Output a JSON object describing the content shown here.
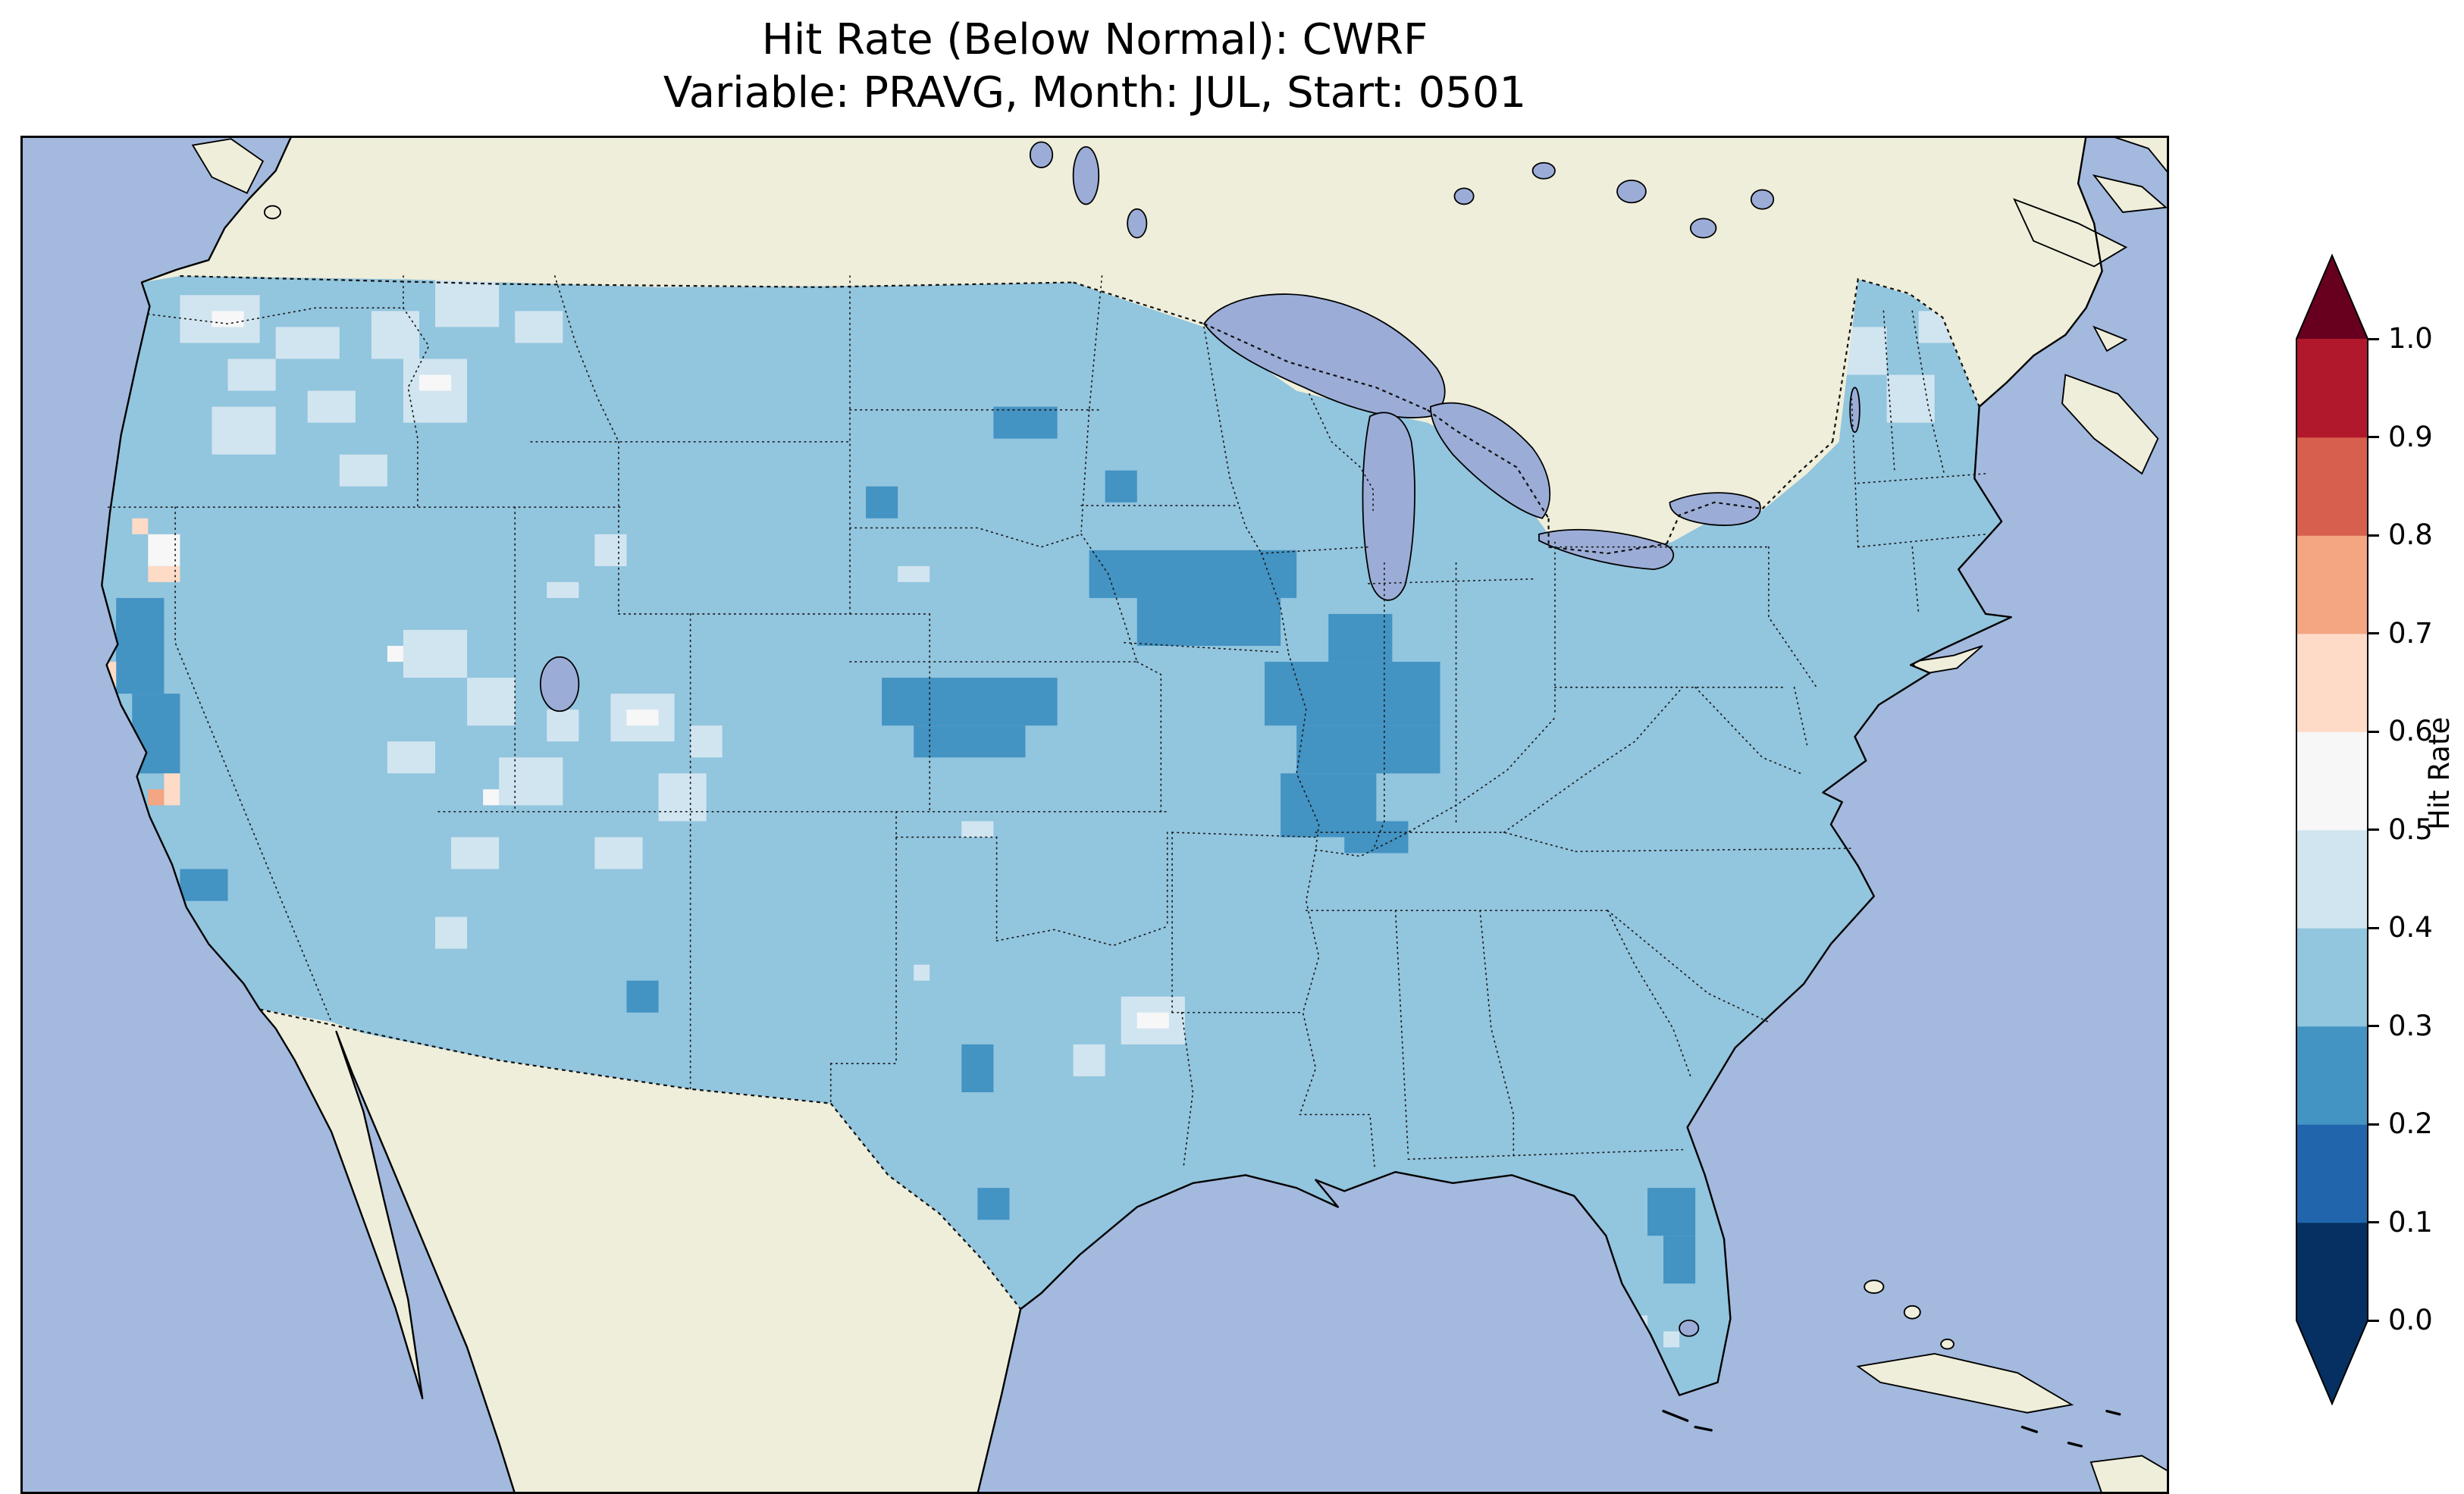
{
  "figure": {
    "title_line1": "Hit Rate (Below Normal): CWRF",
    "title_line2": "Variable: PRAVG, Month: JUL, Start: 0501"
  },
  "map": {
    "ocean_color": "#a3b9de",
    "land_color": "#efeeda",
    "lake_color": "#9badd7",
    "coast_color": "#000000"
  },
  "colorbar": {
    "label": "Hit Rate",
    "ticks_top_to_bottom": [
      "1.0",
      "0.9",
      "0.8",
      "0.7",
      "0.6",
      "0.5",
      "0.4",
      "0.3",
      "0.2",
      "0.1",
      "0.0"
    ],
    "bin_colors_bottom_to_top": [
      "#053061",
      "#2166ac",
      "#4393c3",
      "#92c5de",
      "#d1e5f0",
      "#f7f7f7",
      "#fddbc7",
      "#f4a582",
      "#d6604d",
      "#b2182b"
    ],
    "under_arrow_color": "#053061",
    "over_arrow_color": "#67001f"
  },
  "chart_data": {
    "type": "heatmap",
    "title": "Hit Rate (Below Normal): CWRF",
    "subtitle": "Variable: PRAVG, Month: JUL, Start: 0501",
    "model": "CWRF",
    "variable": "PRAVG",
    "month": "JUL",
    "start": "0501",
    "colorbar_label": "Hit Rate",
    "value_range": [
      0.0,
      1.0
    ],
    "bin_edges": [
      0.0,
      0.1,
      0.2,
      0.3,
      0.4,
      0.5,
      0.6,
      0.7,
      0.8,
      0.9,
      1.0
    ],
    "bin_colors": [
      "#053061",
      "#2166ac",
      "#4393c3",
      "#92c5de",
      "#d1e5f0",
      "#f7f7f7",
      "#fddbc7",
      "#f4a582",
      "#d6604d",
      "#b2182b"
    ],
    "base_bin": 3,
    "legend_position": "right",
    "regions_summary": [
      {
        "area": "most of the contiguous US",
        "hit_rate": "0.3-0.4"
      },
      {
        "area": "Iowa / Illinois / northern Missouri corridor",
        "hit_rate": "0.2-0.3"
      },
      {
        "area": "central Colorado - western Kansas cluster",
        "hit_rate": "0.2-0.3"
      },
      {
        "area": "North Dakota and South Dakota small spots",
        "hit_rate": "0.2-0.3"
      },
      {
        "area": "California Central Valley strip",
        "hit_rate": "0.1-0.3"
      },
      {
        "area": "Pacific Northwest and Great Basin patches",
        "hit_rate": "0.4-0.6"
      },
      {
        "area": "coastal central California spots",
        "hit_rate": "0.6-0.8"
      },
      {
        "area": "east-central Florida coast",
        "hit_rate": "0.2-0.3"
      },
      {
        "area": "southern Texas spots",
        "hit_rate": "0.2-0.3"
      }
    ],
    "patches": [
      {
        "bin": 1,
        "rects": [
          [
            6,
            30,
            2,
            4
          ]
        ]
      },
      {
        "bin": 2,
        "rects": [
          [
            67,
            26,
            13,
            3
          ],
          [
            70,
            29,
            9,
            3
          ],
          [
            82,
            30,
            4,
            3
          ],
          [
            78,
            33,
            11,
            4
          ],
          [
            80,
            37,
            9,
            3
          ],
          [
            79,
            40,
            6,
            4
          ],
          [
            83,
            43,
            4,
            2
          ],
          [
            54,
            34,
            11,
            3
          ],
          [
            56,
            37,
            7,
            2
          ],
          [
            61,
            17,
            4,
            2
          ],
          [
            53,
            22,
            2,
            2
          ],
          [
            68,
            21,
            2,
            2
          ],
          [
            6,
            29,
            3,
            6
          ],
          [
            7,
            35,
            3,
            5
          ],
          [
            10,
            46,
            3,
            2
          ],
          [
            59,
            57,
            2,
            3
          ],
          [
            60,
            66,
            2,
            2
          ],
          [
            102,
            66,
            3,
            3
          ],
          [
            103,
            69,
            2,
            3
          ],
          [
            38,
            53,
            2,
            2
          ]
        ]
      },
      {
        "bin": 4,
        "rects": [
          [
            10,
            10,
            5,
            3
          ],
          [
            16,
            12,
            4,
            2
          ],
          [
            22,
            11,
            3,
            3
          ],
          [
            13,
            14,
            3,
            2
          ],
          [
            12,
            17,
            4,
            3
          ],
          [
            18,
            16,
            3,
            2
          ],
          [
            24,
            14,
            4,
            4
          ],
          [
            20,
            20,
            3,
            2
          ],
          [
            26,
            9,
            4,
            3
          ],
          [
            31,
            11,
            3,
            2
          ],
          [
            24,
            31,
            4,
            3
          ],
          [
            28,
            34,
            3,
            3
          ],
          [
            23,
            38,
            3,
            2
          ],
          [
            30,
            39,
            4,
            3
          ],
          [
            27,
            44,
            3,
            2
          ],
          [
            33,
            36,
            2,
            2
          ],
          [
            37,
            35,
            4,
            3
          ],
          [
            40,
            40,
            3,
            3
          ],
          [
            36,
            44,
            3,
            2
          ],
          [
            42,
            37,
            2,
            2
          ],
          [
            36,
            25,
            2,
            2
          ],
          [
            33,
            28,
            2,
            1
          ],
          [
            59,
            43,
            2,
            1
          ],
          [
            69,
            54,
            4,
            3
          ],
          [
            66,
            57,
            2,
            2
          ],
          [
            55,
            27,
            2,
            1
          ],
          [
            113,
            12,
            4,
            3
          ],
          [
            117,
            15,
            3,
            3
          ],
          [
            110,
            16,
            3,
            2
          ],
          [
            119,
            11,
            3,
            2
          ],
          [
            111,
            16,
            3,
            2
          ],
          [
            26,
            49,
            2,
            2
          ],
          [
            101,
            74,
            1,
            1
          ],
          [
            103,
            75,
            1,
            1
          ],
          [
            56,
            52,
            1,
            1
          ],
          [
            47,
            61,
            2,
            1
          ]
        ]
      },
      {
        "bin": 5,
        "rects": [
          [
            8,
            25,
            2,
            2
          ],
          [
            25,
            15,
            2,
            1
          ],
          [
            38,
            36,
            2,
            1
          ],
          [
            23,
            32,
            1,
            1
          ],
          [
            12,
            11,
            2,
            1
          ],
          [
            70,
            55,
            2,
            1
          ],
          [
            29,
            41,
            1,
            1
          ]
        ]
      },
      {
        "bin": 6,
        "rects": [
          [
            8,
            27,
            2,
            1
          ],
          [
            7,
            24,
            1,
            1
          ],
          [
            9,
            40,
            1,
            2
          ],
          [
            5,
            33,
            1,
            2
          ]
        ]
      },
      {
        "bin": 7,
        "rects": [
          [
            8,
            41,
            1,
            1
          ]
        ]
      }
    ]
  }
}
